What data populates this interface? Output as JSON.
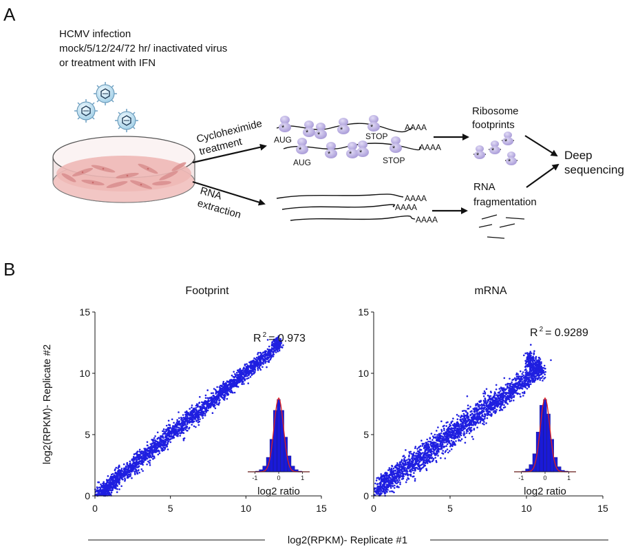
{
  "panel_a": {
    "letter": "A",
    "infection_lines": [
      "HCMV infection",
      "mock/5/12/24/72 hr/ inactivated virus",
      "or treatment with IFN"
    ],
    "arrow_upper_lines": [
      "Cycloheximide",
      "treatment"
    ],
    "arrow_lower_lines": [
      "RNA",
      "extraction"
    ],
    "mrna_labels": {
      "start": "AUG",
      "stop": "STOP",
      "polya": "AAAA"
    },
    "ribosome_footprints_lines": [
      "Ribosome",
      "footprints"
    ],
    "rna_fragmentation_lines": [
      "RNA",
      "fragmentation"
    ],
    "deep_sequencing_lines": [
      "Deep",
      "sequencing"
    ]
  },
  "panel_b": {
    "letter": "B",
    "shared_xlabel": "log2(RPKM)- Replicate #1",
    "shared_ylabel": "log2(RPKM)- Replicate #2"
  },
  "chart_data": [
    {
      "type": "scatter",
      "title": "Footprint",
      "xlabel": "log2(RPKM)- Replicate #1",
      "ylabel": "log2(RPKM)- Replicate #2",
      "xlim": [
        0,
        15
      ],
      "ylim": [
        0,
        15
      ],
      "xticks": [
        "0",
        "5",
        "10",
        "15"
      ],
      "yticks": [
        "0",
        "5",
        "10",
        "15"
      ],
      "r2_label": "R",
      "r2_sup": "2",
      "r2_value": "= 0.973",
      "series": [
        {
          "color": "#1f1fe0",
          "points": [
            [
              0.2,
              0.1
            ],
            [
              0.5,
              0.4
            ],
            [
              0.8,
              0.6
            ],
            [
              1.2,
              1.1
            ],
            [
              1.5,
              1.6
            ],
            [
              2.0,
              1.9
            ],
            [
              2.5,
              2.4
            ],
            [
              3.0,
              3.1
            ],
            [
              3.5,
              3.4
            ],
            [
              4.0,
              4.1
            ],
            [
              4.5,
              4.4
            ],
            [
              5.0,
              5.1
            ],
            [
              5.5,
              5.4
            ],
            [
              6.0,
              6.1
            ],
            [
              6.5,
              6.4
            ],
            [
              7.0,
              7.1
            ],
            [
              7.5,
              7.4
            ],
            [
              8.0,
              8.0
            ],
            [
              8.5,
              8.6
            ],
            [
              9.0,
              9.0
            ],
            [
              9.5,
              9.6
            ],
            [
              10.0,
              10.1
            ],
            [
              10.5,
              10.6
            ],
            [
              11.0,
              11.2
            ],
            [
              11.5,
              11.5
            ],
            [
              12.1,
              12.4
            ]
          ]
        }
      ],
      "inset": {
        "type": "bar",
        "xlabel": "log2 ratio",
        "xticks": [
          "-1",
          "0",
          "1"
        ],
        "bin_centers": [
          -0.9,
          -0.75,
          -0.6,
          -0.45,
          -0.3,
          -0.15,
          0,
          0.15,
          0.3,
          0.45,
          0.6,
          0.75,
          0.9
        ],
        "values": [
          0.01,
          0.03,
          0.08,
          0.2,
          0.45,
          0.85,
          1.0,
          0.85,
          0.48,
          0.22,
          0.08,
          0.03,
          0.01
        ],
        "fit_color": "#e0201f"
      }
    },
    {
      "type": "scatter",
      "title": "mRNA",
      "xlabel": "log2(RPKM)- Replicate #1",
      "ylabel": "log2(RPKM)- Replicate #2",
      "xlim": [
        0,
        15
      ],
      "ylim": [
        0,
        15
      ],
      "xticks": [
        "0",
        "5",
        "10",
        "15"
      ],
      "yticks": [
        "0",
        "5",
        "10",
        "15"
      ],
      "r2_label": "R",
      "r2_sup": "2",
      "r2_value": "= 0.9289",
      "series": [
        {
          "color": "#1f1fe0",
          "points": [
            [
              0.2,
              0.3
            ],
            [
              0.6,
              0.9
            ],
            [
              1.0,
              1.3
            ],
            [
              1.5,
              1.8
            ],
            [
              2.0,
              2.2
            ],
            [
              2.5,
              2.6
            ],
            [
              3.0,
              3.1
            ],
            [
              3.5,
              3.5
            ],
            [
              4.0,
              4.0
            ],
            [
              4.5,
              4.5
            ],
            [
              5.0,
              5.0
            ],
            [
              5.5,
              5.4
            ],
            [
              6.0,
              5.9
            ],
            [
              6.5,
              6.3
            ],
            [
              7.0,
              6.8
            ],
            [
              7.5,
              7.2
            ],
            [
              8.0,
              7.7
            ],
            [
              8.5,
              8.1
            ],
            [
              9.0,
              8.6
            ],
            [
              9.5,
              9.0
            ],
            [
              10.0,
              9.5
            ],
            [
              10.5,
              10.0
            ],
            [
              11.0,
              10.2
            ],
            [
              10.2,
              11.0
            ]
          ]
        }
      ],
      "inset": {
        "type": "bar",
        "xlabel": "log2 ratio",
        "xticks": [
          "-1",
          "0",
          "1"
        ],
        "bin_centers": [
          -0.9,
          -0.75,
          -0.6,
          -0.45,
          -0.3,
          -0.15,
          0,
          0.15,
          0.3,
          0.45,
          0.6,
          0.75,
          0.9
        ],
        "values": [
          0.01,
          0.04,
          0.1,
          0.25,
          0.55,
          0.92,
          1.0,
          0.8,
          0.45,
          0.2,
          0.07,
          0.02,
          0.01
        ],
        "fit_color": "#e0201f"
      }
    }
  ]
}
